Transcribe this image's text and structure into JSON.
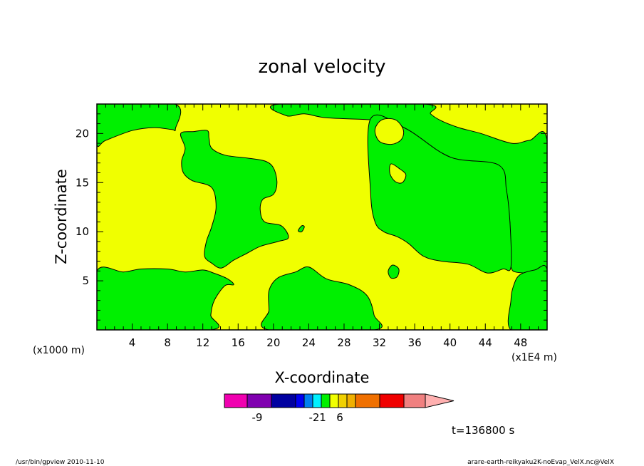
{
  "chart_data": {
    "type": "heatmap",
    "title": "zonal velocity",
    "xlabel": "X-coordinate",
    "ylabel": "Z-coordinate",
    "x_unit_label": "(x1E4 m)",
    "y_unit_label": "(x1000 m)",
    "xlim": [
      0,
      51
    ],
    "ylim": [
      0,
      23
    ],
    "x_ticks": [
      4,
      8,
      12,
      16,
      20,
      24,
      28,
      32,
      36,
      40,
      44,
      48
    ],
    "y_ticks": [
      5,
      10,
      15,
      20
    ],
    "grid": false,
    "field_colors": {
      "green": "#00f000",
      "yellow": "#f0ff00"
    },
    "regions": [
      {
        "level": "green",
        "name": "left-top-region",
        "points": [
          [
            0,
            23
          ],
          [
            8.8,
            23
          ],
          [
            8.9,
            20.5
          ],
          [
            8.5,
            20.4
          ],
          [
            6.5,
            20.6
          ],
          [
            4,
            20.3
          ],
          [
            1,
            19.3
          ],
          [
            0,
            18.9
          ]
        ]
      },
      {
        "level": "green",
        "name": "center-left-region",
        "points": [
          [
            9.5,
            20
          ],
          [
            11,
            20.2
          ],
          [
            12.5,
            20.3
          ],
          [
            12.7,
            19.5
          ],
          [
            13,
            18.5
          ],
          [
            14.5,
            17.8
          ],
          [
            17,
            17.5
          ],
          [
            19,
            17.2
          ],
          [
            20,
            16.5
          ],
          [
            20.4,
            15
          ],
          [
            20,
            13.8
          ],
          [
            18.8,
            13.3
          ],
          [
            18.5,
            12.2
          ],
          [
            19,
            11
          ],
          [
            20.9,
            10.6
          ],
          [
            21.7,
            9.4
          ],
          [
            20.5,
            9
          ],
          [
            18.5,
            8.5
          ],
          [
            17,
            7.8
          ],
          [
            15.5,
            7.1
          ],
          [
            14.1,
            6.3
          ],
          [
            13,
            6.8
          ],
          [
            12.2,
            7.5
          ],
          [
            12.4,
            9
          ],
          [
            13,
            10.5
          ],
          [
            13.5,
            12.5
          ],
          [
            13,
            14.5
          ],
          [
            10.8,
            15.2
          ],
          [
            9.8,
            16
          ],
          [
            9.6,
            17.2
          ],
          [
            10,
            18.5
          ]
        ]
      },
      {
        "level": "green",
        "name": "bottom-left-region",
        "points": [
          [
            0,
            0
          ],
          [
            12.9,
            0
          ],
          [
            12.9,
            1.5
          ],
          [
            13.3,
            3
          ],
          [
            14.5,
            4.5
          ],
          [
            15.5,
            4.6
          ],
          [
            14.8,
            5.2
          ],
          [
            13.2,
            5.8
          ],
          [
            12,
            6.1
          ],
          [
            10,
            5.9
          ],
          [
            8,
            6.2
          ],
          [
            5,
            6.2
          ],
          [
            3,
            5.9
          ],
          [
            0,
            6
          ]
        ]
      },
      {
        "level": "green",
        "name": "upper-right-region",
        "points": [
          [
            20.7,
            23
          ],
          [
            37,
            23
          ],
          [
            37.8,
            22
          ],
          [
            39,
            21.3
          ],
          [
            41,
            20.6
          ],
          [
            43.5,
            20
          ],
          [
            47,
            19
          ],
          [
            49,
            19.3
          ],
          [
            51,
            19.2
          ],
          [
            51,
            6.1
          ],
          [
            49.5,
            5.8
          ],
          [
            47.4,
            5.9
          ],
          [
            46.9,
            6.4
          ],
          [
            46.5,
            7.5
          ],
          [
            46.5,
            9.5
          ],
          [
            46.8,
            10.8
          ],
          [
            46.4,
            12.5
          ],
          [
            46.4,
            14.2
          ],
          [
            45.8,
            16
          ],
          [
            45.5,
            16.8
          ],
          [
            44,
            17
          ],
          [
            41.5,
            17
          ],
          [
            40,
            17.6
          ],
          [
            37.5,
            18.8
          ],
          [
            35,
            20.5
          ],
          [
            33,
            21.2
          ],
          [
            31,
            21.4
          ],
          [
            26,
            21.6
          ],
          [
            23.5,
            22
          ],
          [
            21.5,
            21.8
          ]
        ]
      },
      {
        "level": "green",
        "name": "right-upper-block",
        "points": [
          [
            31,
            21.5
          ],
          [
            31,
            14
          ],
          [
            31.5,
            11
          ],
          [
            32.5,
            10
          ],
          [
            34,
            9.5
          ],
          [
            35.3,
            8.8
          ],
          [
            37,
            7.5
          ],
          [
            39,
            7
          ],
          [
            42,
            6.7
          ],
          [
            44.2,
            5.8
          ],
          [
            46,
            6.2
          ],
          [
            46.9,
            6.4
          ],
          [
            46.8,
            10.8
          ],
          [
            46.4,
            14.2
          ],
          [
            45.5,
            16.8
          ],
          [
            40,
            17.6
          ],
          [
            35,
            20.5
          ]
        ]
      },
      {
        "level": "yellow",
        "name": "right-upper-hole",
        "points": [
          [
            31.5,
            20.4
          ],
          [
            32.3,
            21.4
          ],
          [
            33.8,
            21.4
          ],
          [
            34.7,
            20.4
          ],
          [
            34.5,
            19.4
          ],
          [
            33.4,
            18.9
          ],
          [
            32,
            19.2
          ]
        ]
      },
      {
        "level": "yellow",
        "name": "right-small-hole",
        "points": [
          [
            33.3,
            16.9
          ],
          [
            34.3,
            16.4
          ],
          [
            35,
            15.8
          ],
          [
            34.6,
            15
          ],
          [
            33.8,
            15.1
          ],
          [
            33.2,
            15.9
          ]
        ]
      },
      {
        "level": "green",
        "name": "bottom-center-region",
        "points": [
          [
            19.5,
            0
          ],
          [
            31.4,
            0
          ],
          [
            31.4,
            1.5
          ],
          [
            30.6,
            3.5
          ],
          [
            28.6,
            4.6
          ],
          [
            26,
            5.2
          ],
          [
            24,
            6.4
          ],
          [
            22.5,
            5.9
          ],
          [
            20.5,
            5.3
          ],
          [
            19.5,
            4
          ],
          [
            19.5,
            2
          ]
        ]
      },
      {
        "level": "green",
        "name": "bottom-right-region",
        "points": [
          [
            46.9,
            0
          ],
          [
            51,
            0
          ],
          [
            51,
            6.1
          ],
          [
            49.6,
            6.1
          ],
          [
            47.9,
            5.6
          ],
          [
            47.2,
            4.5
          ],
          [
            46.9,
            3
          ]
        ]
      },
      {
        "level": "green",
        "name": "small-blob-center",
        "points": [
          [
            33,
            6
          ],
          [
            33.5,
            6.6
          ],
          [
            34.2,
            6.2
          ],
          [
            34,
            5.4
          ],
          [
            33.3,
            5.3
          ]
        ]
      },
      {
        "level": "green",
        "name": "tiny-blob",
        "points": [
          [
            22.8,
            10.1
          ],
          [
            23.2,
            10.6
          ],
          [
            23.5,
            10.5
          ],
          [
            23.2,
            10
          ]
        ]
      }
    ],
    "colorbar": {
      "colors": [
        "#f000b0",
        "#8000b0",
        "#0000a0",
        "#0000f0",
        "#0080f0",
        "#00f0ff",
        "#00f000",
        "#f0ff00",
        "#f0d000",
        "#f0b000",
        "#f07000",
        "#f00000",
        "#f08080",
        "#ffb0b0"
      ],
      "tick_labels": [
        {
          "slot": 1.0,
          "text": "-9"
        },
        {
          "slot": 4.0,
          "text": "-2"
        },
        {
          "slot": 5.0,
          "text": "1"
        },
        {
          "slot": 7.0,
          "text": "6"
        }
      ]
    },
    "time_label": "t=136800 s"
  },
  "footer": {
    "left": "/usr/bin/gpview   2010-11-10",
    "right": "arare-earth-reikyaku2K-noEvap_VelX.nc@VelX"
  }
}
